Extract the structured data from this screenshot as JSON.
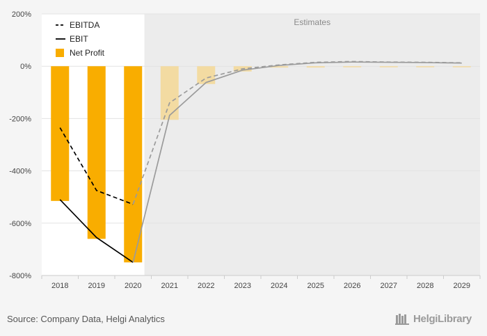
{
  "chart_data": {
    "type": "bar",
    "categories": [
      "2018",
      "2019",
      "2020",
      "2021",
      "2022",
      "2023",
      "2024",
      "2025",
      "2026",
      "2027",
      "2028",
      "2029"
    ],
    "estimates_from_index": 3,
    "estimates_label": "Estimates",
    "ylim": [
      -800,
      200
    ],
    "yticks": [
      200,
      0,
      -200,
      -400,
      -600,
      -800
    ],
    "ytick_labels": [
      "200%",
      "0%",
      "-200%",
      "-400%",
      "-600%",
      "-800%"
    ],
    "series": [
      {
        "name": "Net Profit",
        "kind": "bar",
        "values": [
          -515,
          -660,
          -750,
          -205,
          -68,
          -20,
          -5,
          -5,
          -4,
          -4,
          -4,
          -4
        ]
      },
      {
        "name": "EBITDA",
        "kind": "line",
        "style": "dashed",
        "values": [
          -235,
          -475,
          -528,
          -140,
          -45,
          -10,
          5,
          15,
          18,
          16,
          15,
          13
        ]
      },
      {
        "name": "EBIT",
        "kind": "line",
        "style": "solid",
        "values": [
          -510,
          -655,
          -750,
          -188,
          -62,
          -15,
          3,
          13,
          16,
          15,
          14,
          12
        ]
      }
    ],
    "colors": {
      "bar_actual": "#f9ad00",
      "bar_estimate": "#f3dba2",
      "line_actual": "#000000",
      "line_estimate": "#9b9b9b",
      "estimate_bg": "#ececec",
      "plot_bg": "#ffffff"
    }
  },
  "footer": {
    "source": "Source: Company Data, Helgi Analytics",
    "brand": "HelgiLibrary"
  }
}
